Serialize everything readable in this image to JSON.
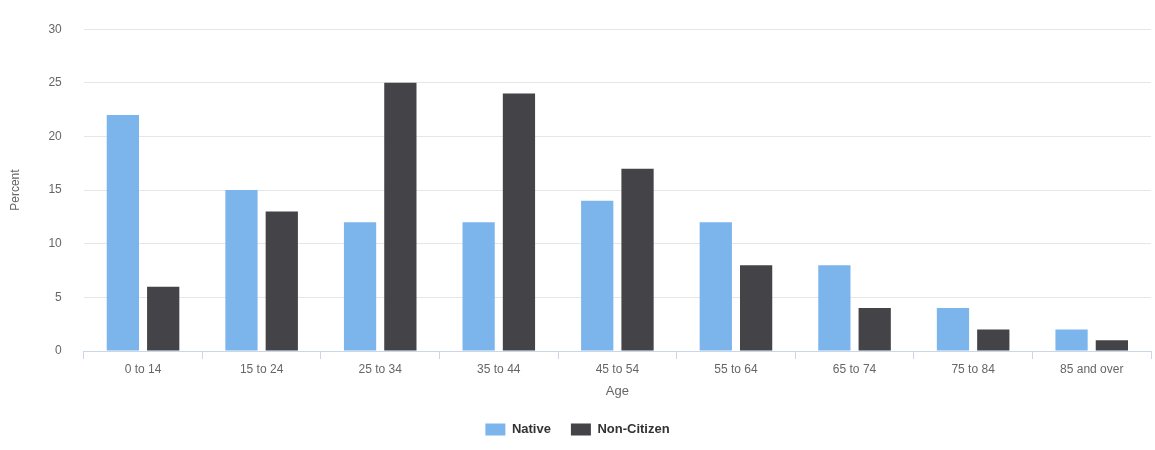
{
  "chart_data": {
    "type": "bar",
    "xlabel": "Age",
    "ylabel": "Percent",
    "categories": [
      "0 to 14",
      "15 to 24",
      "25 to 34",
      "35 to 44",
      "45 to 54",
      "55 to 64",
      "65 to 74",
      "75 to 84",
      "85 and over"
    ],
    "series": [
      {
        "name": "Native",
        "color": "#7cb5ec",
        "values": [
          22,
          15,
          12,
          12,
          14,
          12,
          8,
          4,
          2
        ]
      },
      {
        "name": "Non-Citizen",
        "color": "#434348",
        "values": [
          6,
          13,
          25,
          24,
          17,
          8,
          4,
          2,
          1
        ]
      }
    ],
    "ylim": [
      0,
      30
    ],
    "yticks": [
      0,
      5,
      10,
      15,
      20,
      25,
      30
    ],
    "grid": "y",
    "legend": "bottom"
  }
}
